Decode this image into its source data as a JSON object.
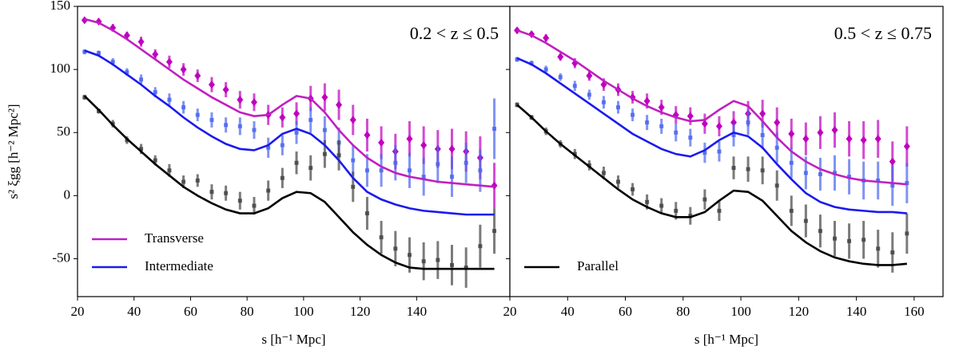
{
  "chart_data": [
    {
      "type": "line",
      "annotation": "0.2 < z ≤ 0.5",
      "xlabel": "s [h⁻¹ Mpc]",
      "ylabel": "s² ξgg [h⁻² Mpc²]",
      "xlim": [
        20,
        173
      ],
      "xticks": [
        20,
        40,
        60,
        80,
        100,
        120,
        140
      ],
      "ylim": [
        -80,
        150
      ],
      "yticks": [
        -50,
        0,
        50,
        100,
        150
      ],
      "legend": "lower left",
      "x": [
        22.5,
        27.5,
        32.5,
        37.5,
        42.5,
        47.5,
        52.5,
        57.5,
        62.5,
        67.5,
        72.5,
        77.5,
        82.5,
        87.5,
        92.5,
        97.5,
        102.5,
        107.5,
        112.5,
        117.5,
        122.5,
        127.5,
        132.5,
        137.5,
        142.5,
        147.5,
        152.5,
        157.5,
        162.5,
        167.5
      ],
      "series": [
        {
          "name": "Transverse",
          "color": "#c020c0",
          "values": [
            140,
            137,
            131,
            124,
            116,
            108,
            100,
            92,
            85,
            78,
            72,
            66,
            63,
            64,
            72,
            79,
            77,
            66,
            52,
            40,
            30,
            23,
            18,
            15,
            13,
            11,
            10,
            9,
            8,
            7
          ]
        },
        {
          "name": "Intermediate",
          "color": "#1a1aee",
          "values": [
            115,
            111,
            104,
            96,
            88,
            79,
            71,
            62,
            54,
            47,
            41,
            37,
            36,
            40,
            49,
            53,
            49,
            40,
            28,
            14,
            3,
            -3,
            -7,
            -10,
            -12,
            -13,
            -14,
            -15,
            -15,
            -15
          ]
        },
        {
          "color": "#000000",
          "values": [
            79,
            68,
            56,
            45,
            35,
            25,
            16,
            7,
            0,
            -6,
            -11,
            -14,
            -14,
            -10,
            -2,
            3,
            2,
            -5,
            -17,
            -29,
            -39,
            -47,
            -53,
            -57,
            -58,
            -58,
            -58,
            -58,
            -58,
            -58
          ]
        }
      ],
      "points": [
        {
          "color": "#c000c0",
          "marker": "diamond",
          "values": [
            139,
            138,
            133,
            127,
            122,
            112,
            106,
            100,
            95,
            88,
            84,
            76,
            74,
            64,
            62,
            65,
            77,
            78,
            72,
            60,
            48,
            42,
            35,
            45,
            40,
            37,
            37,
            35,
            30,
            8
          ],
          "errors": [
            2,
            2,
            3,
            3,
            4,
            4,
            5,
            5,
            5,
            6,
            6,
            7,
            7,
            8,
            8,
            9,
            10,
            11,
            12,
            12,
            13,
            13,
            14,
            14,
            15,
            15,
            16,
            16,
            17,
            18
          ]
        },
        {
          "color": "#4a66ee",
          "marker": "square",
          "values": [
            114,
            113,
            106,
            98,
            92,
            82,
            76,
            70,
            64,
            60,
            56,
            55,
            52,
            38,
            40,
            50,
            60,
            52,
            42,
            28,
            20,
            20,
            26,
            20,
            15,
            25,
            15,
            26,
            20,
            53
          ],
          "errors": [
            2,
            2,
            3,
            3,
            4,
            4,
            5,
            5,
            5,
            6,
            6,
            7,
            7,
            8,
            8,
            9,
            10,
            11,
            12,
            12,
            13,
            13,
            14,
            14,
            15,
            15,
            16,
            16,
            17,
            24
          ]
        },
        {
          "color": "#444444",
          "marker": "square",
          "values": [
            78,
            67,
            57,
            44,
            37,
            28,
            20,
            11,
            12,
            3,
            2,
            -4,
            -8,
            4,
            14,
            26,
            22,
            33,
            32,
            7,
            -14,
            -33,
            -42,
            -47,
            -52,
            -51,
            -55,
            -57,
            -40,
            -28
          ],
          "errors": [
            2,
            2,
            3,
            3,
            4,
            4,
            5,
            5,
            5,
            6,
            6,
            7,
            7,
            8,
            8,
            9,
            10,
            11,
            12,
            12,
            13,
            13,
            14,
            14,
            15,
            15,
            16,
            16,
            17,
            18
          ]
        }
      ]
    },
    {
      "type": "line",
      "annotation": "0.5 < z ≤ 0.75",
      "xlabel": "s [h⁻¹ Mpc]",
      "xlim": [
        20,
        170
      ],
      "xticks": [
        20,
        40,
        60,
        80,
        100,
        120,
        140,
        160
      ],
      "ylim": [
        -80,
        150
      ],
      "legend": "lower left",
      "x": [
        22.5,
        27.5,
        32.5,
        37.5,
        42.5,
        47.5,
        52.5,
        57.5,
        62.5,
        67.5,
        72.5,
        77.5,
        82.5,
        87.5,
        92.5,
        97.5,
        102.5,
        107.5,
        112.5,
        117.5,
        122.5,
        127.5,
        132.5,
        137.5,
        142.5,
        147.5,
        152.5,
        157.5
      ],
      "series": [
        {
          "color": "#c020c0",
          "values": [
            131,
            127,
            121,
            114,
            107,
            99,
            91,
            84,
            77,
            71,
            66,
            62,
            59,
            60,
            68,
            75,
            71,
            59,
            46,
            35,
            27,
            21,
            17,
            14,
            12,
            11,
            10,
            9
          ]
        },
        {
          "color": "#1a1aee",
          "values": [
            109,
            104,
            97,
            89,
            81,
            73,
            65,
            57,
            49,
            43,
            37,
            33,
            31,
            36,
            44,
            50,
            47,
            38,
            25,
            13,
            2,
            -5,
            -9,
            -11,
            -12,
            -13,
            -13,
            -14
          ]
        },
        {
          "name": "Parallel",
          "color": "#000000",
          "values": [
            72,
            62,
            51,
            41,
            32,
            23,
            14,
            5,
            -3,
            -9,
            -14,
            -17,
            -17,
            -13,
            -4,
            4,
            3,
            -4,
            -16,
            -28,
            -37,
            -44,
            -49,
            -52,
            -54,
            -55,
            -55,
            -54
          ]
        }
      ],
      "points": [
        {
          "color": "#c000c0",
          "marker": "diamond",
          "values": [
            131,
            128,
            125,
            110,
            105,
            95,
            88,
            84,
            78,
            75,
            70,
            64,
            63,
            57,
            55,
            58,
            65,
            65,
            58,
            49,
            45,
            50,
            52,
            45,
            44,
            45,
            27,
            39
          ],
          "errors": [
            2,
            2,
            3,
            3,
            4,
            4,
            5,
            5,
            5,
            6,
            6,
            7,
            7,
            8,
            8,
            9,
            10,
            11,
            12,
            12,
            13,
            13,
            14,
            14,
            15,
            15,
            16,
            16
          ]
        },
        {
          "color": "#4a66ee",
          "marker": "square",
          "values": [
            108,
            105,
            100,
            94,
            87,
            80,
            74,
            70,
            64,
            58,
            55,
            50,
            46,
            34,
            35,
            48,
            58,
            48,
            38,
            26,
            18,
            17,
            18,
            15,
            12,
            12,
            8,
            10
          ],
          "errors": [
            2,
            2,
            3,
            3,
            4,
            4,
            5,
            5,
            5,
            6,
            6,
            7,
            7,
            8,
            8,
            9,
            10,
            11,
            12,
            12,
            13,
            13,
            14,
            14,
            15,
            15,
            16,
            16
          ]
        },
        {
          "color": "#444444",
          "marker": "square",
          "values": [
            72,
            62,
            51,
            41,
            33,
            24,
            18,
            11,
            5,
            -5,
            -8,
            -12,
            -16,
            -3,
            -12,
            22,
            21,
            20,
            8,
            -12,
            -20,
            -28,
            -34,
            -36,
            -35,
            -42,
            -45,
            -30
          ],
          "errors": [
            2,
            2,
            3,
            3,
            4,
            4,
            5,
            5,
            5,
            6,
            6,
            7,
            7,
            8,
            8,
            9,
            10,
            11,
            12,
            12,
            13,
            13,
            14,
            14,
            15,
            15,
            16,
            16
          ]
        }
      ]
    }
  ]
}
